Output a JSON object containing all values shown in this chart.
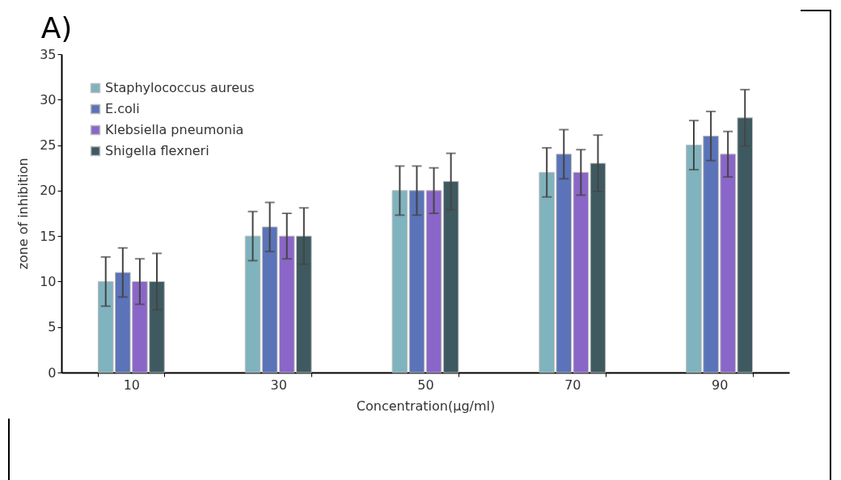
{
  "chart_data": {
    "type": "bar",
    "title": "A)",
    "xlabel": "Concentration(μg/ml)",
    "ylabel": "zone of inhibition",
    "categories": [
      "10",
      "30",
      "50",
      "70",
      "90"
    ],
    "series": [
      {
        "name": "Staphylococcus aureus",
        "color": "#7fb3be",
        "values": [
          10,
          15,
          20,
          22,
          25
        ],
        "errors": [
          2.7,
          2.7,
          2.7,
          2.7,
          2.7
        ]
      },
      {
        "name": "E.coli",
        "color": "#5b73b8",
        "values": [
          11,
          16,
          20,
          24,
          26
        ],
        "errors": [
          2.7,
          2.7,
          2.7,
          2.7,
          2.7
        ]
      },
      {
        "name": "Klebsiella pneumonia",
        "color": "#8a66c8",
        "values": [
          10,
          15,
          20,
          22,
          24
        ],
        "errors": [
          2.5,
          2.5,
          2.5,
          2.5,
          2.5
        ]
      },
      {
        "name": "Shigella flexneri",
        "color": "#3e5a60",
        "values": [
          10,
          15,
          21,
          23,
          28
        ],
        "errors": [
          3.1,
          3.1,
          3.1,
          3.1,
          3.1
        ]
      }
    ],
    "ylim": [
      0,
      35
    ],
    "yticks": [
      0,
      5,
      10,
      15,
      20,
      25,
      30,
      35
    ],
    "grid": false,
    "legend": "top left"
  }
}
